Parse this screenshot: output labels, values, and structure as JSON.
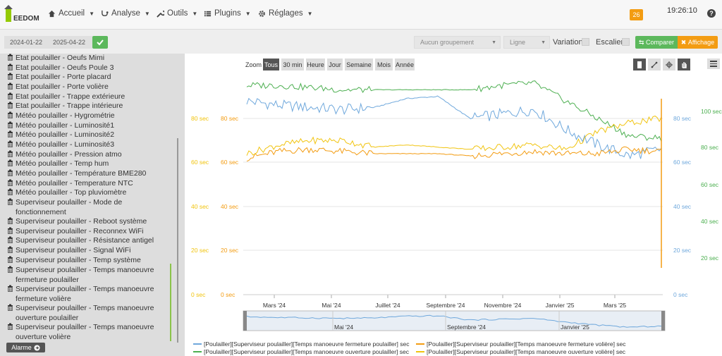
{
  "header": {
    "logo_text": "EEDOM",
    "nav": [
      {
        "label": "Accueil",
        "icon": "home-icon"
      },
      {
        "label": "Analyse",
        "icon": "stethoscope-icon"
      },
      {
        "label": "Outils",
        "icon": "wrench-icon"
      },
      {
        "label": "Plugins",
        "icon": "list-icon"
      },
      {
        "label": "Réglages",
        "icon": "gear-icon"
      }
    ],
    "badge": "26",
    "clock": "19:26:10"
  },
  "toolbar": {
    "date_start": "2024-01-22",
    "date_end": "2025-04-22",
    "grouping_placeholder": "Aucun groupement",
    "type_value": "Ligne",
    "variation_label": "Variation",
    "escalier_label": "Escalier",
    "compare_label": "Comparer",
    "display_label": "Affichage"
  },
  "sidebar": {
    "items": [
      "Etat poulailler - Oeufs Mimi",
      "Etat poulailler - Oeufs Poule 3",
      "Etat poulailler - Porte placard",
      "Etat poulailler - Porte volière",
      "Etat poulailler - Trappe extérieure",
      "Etat poulailler - Trappe intérieure",
      "Météo poulailler - Hygrométrie",
      "Météo poulailler - Luminosité1",
      "Météo poulailler - Luminosité2",
      "Météo poulailler - Luminosité3",
      "Météo poulailler - Pression atmo",
      "Météo poulailler - Temp hum",
      "Météo poulailler - Température BME280",
      "Météo poulailler - Temperature NTC",
      "Météo poulailler - Top pluviomètre",
      "Superviseur poulailler - Mode de fonctionnement",
      "Superviseur poulailler - Reboot système",
      "Superviseur poulailler - Reconnex WiFi",
      "Superviseur poulailler - Résistance antigel",
      "Superviseur poulailler - Signal WiFi",
      "Superviseur poulailler - Temp système",
      "Superviseur poulailler - Temps manoeuvre fermeture poulailler",
      "Superviseur poulailler - Temps manoeuvre fermeture volière",
      "Superviseur poulailler - Temps manoeuvre ouverture poulailler",
      "Superviseur poulailler - Temps manoeuvre ouverture volière"
    ],
    "alarme_label": "Alarme"
  },
  "zoom": {
    "label": "Zoom",
    "buttons": [
      "Tous",
      "30 min",
      "Heure",
      "Jour",
      "Semaine",
      "Mois",
      "Année"
    ],
    "active": "Tous"
  },
  "colors": {
    "blue": "#6fa8dc",
    "green": "#4caf50",
    "orange": "#f39c12",
    "yellow": "#f1c40f"
  },
  "chart_data": {
    "type": "line",
    "x_ticks": [
      "Mars '24",
      "Mai '24",
      "Juillet '24",
      "Septembre '24",
      "Novembre '24",
      "Janvier '25",
      "Mars '25"
    ],
    "navigator_ticks": [
      "Mai '24",
      "Septembre '24",
      "Janvier '25"
    ],
    "axes": [
      {
        "side": "left",
        "color": "#f1c40f",
        "ticks": [
          "0 sec",
          "20 sec",
          "40 sec",
          "60 sec",
          "80 sec"
        ]
      },
      {
        "side": "left",
        "color": "#f39c12",
        "ticks": [
          "0 sec",
          "20 sec",
          "40 sec",
          "60 sec",
          "80 sec"
        ]
      },
      {
        "side": "right",
        "color": "#6fa8dc",
        "ticks": [
          "0 sec",
          "20 sec",
          "40 sec",
          "60 sec",
          "80 sec"
        ]
      },
      {
        "side": "right",
        "color": "#4caf50",
        "ticks": [
          "20 sec",
          "40 sec",
          "60 sec",
          "80 sec",
          "100 sec"
        ]
      }
    ],
    "series": [
      {
        "name": "[Poulailler][Superviseur poulailler][Temps manoeuvre fermeture poulailler] sec",
        "color": "#6fa8dc",
        "values": [
          88,
          86,
          85,
          84,
          85,
          89,
          90,
          80,
          82,
          84,
          75,
          68,
          63,
          66
        ]
      },
      {
        "name": "[Poulailler][Superviseur poulailler][Temps manoeuvre fermeture volière] sec",
        "color": "#f39c12",
        "values": [
          62,
          65,
          66,
          65,
          64,
          64,
          64,
          63,
          64,
          65,
          64,
          64,
          66,
          65
        ]
      },
      {
        "name": "[Poulailler][Superviseur poulailler][Temps manoeuvre ouverture poulailler] sec",
        "color": "#4caf50",
        "values": [
          95,
          95,
          94,
          93,
          93,
          93,
          93,
          93,
          95,
          96,
          88,
          80,
          72,
          71
        ]
      },
      {
        "name": "[Poulailler][Superviseur poulailler][Temps manoeuvre ouverture volière] sec",
        "color": "#f1c40f",
        "values": [
          64,
          68,
          70,
          70,
          67,
          68,
          67,
          66,
          67,
          68,
          66,
          74,
          78,
          80
        ]
      }
    ]
  }
}
